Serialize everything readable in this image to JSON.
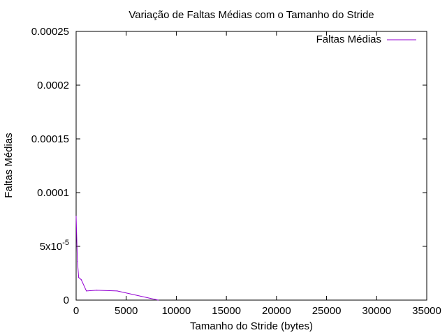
{
  "chart_data": {
    "type": "line",
    "title": "Variação de Faltas Médias com o Tamanho do Stride",
    "xlabel": "Tamanho do Stride (bytes)",
    "ylabel": "Faltas Médias",
    "xlim": [
      0,
      35000
    ],
    "ylim": [
      0,
      0.00025
    ],
    "x_ticks": [
      {
        "value": 0,
        "label": "0"
      },
      {
        "value": 5000,
        "label": "5000"
      },
      {
        "value": 10000,
        "label": "10000"
      },
      {
        "value": 15000,
        "label": "15000"
      },
      {
        "value": 20000,
        "label": "20000"
      },
      {
        "value": 25000,
        "label": "25000"
      },
      {
        "value": 30000,
        "label": "30000"
      },
      {
        "value": 35000,
        "label": "35000"
      }
    ],
    "y_ticks": [
      {
        "value": 0,
        "label": "0"
      },
      {
        "value": 5e-05,
        "label": "5x10",
        "exp": "-5"
      },
      {
        "value": 0.0001,
        "label": "0.0001"
      },
      {
        "value": 0.00015,
        "label": "0.00015"
      },
      {
        "value": 0.0002,
        "label": "0.0002"
      },
      {
        "value": 0.00025,
        "label": "0.00025"
      }
    ],
    "grid": false,
    "legend_position": "top-right",
    "series": [
      {
        "name": "Faltas Médias",
        "color": "#9400d3",
        "x": [
          0,
          128,
          256,
          512,
          1024,
          2048,
          4096,
          8192
        ],
        "y": [
          7.8e-05,
          3.6e-05,
          2.1e-05,
          1.9e-05,
          8.5e-06,
          9.2e-06,
          8.5e-06,
          0.0
        ]
      }
    ]
  }
}
